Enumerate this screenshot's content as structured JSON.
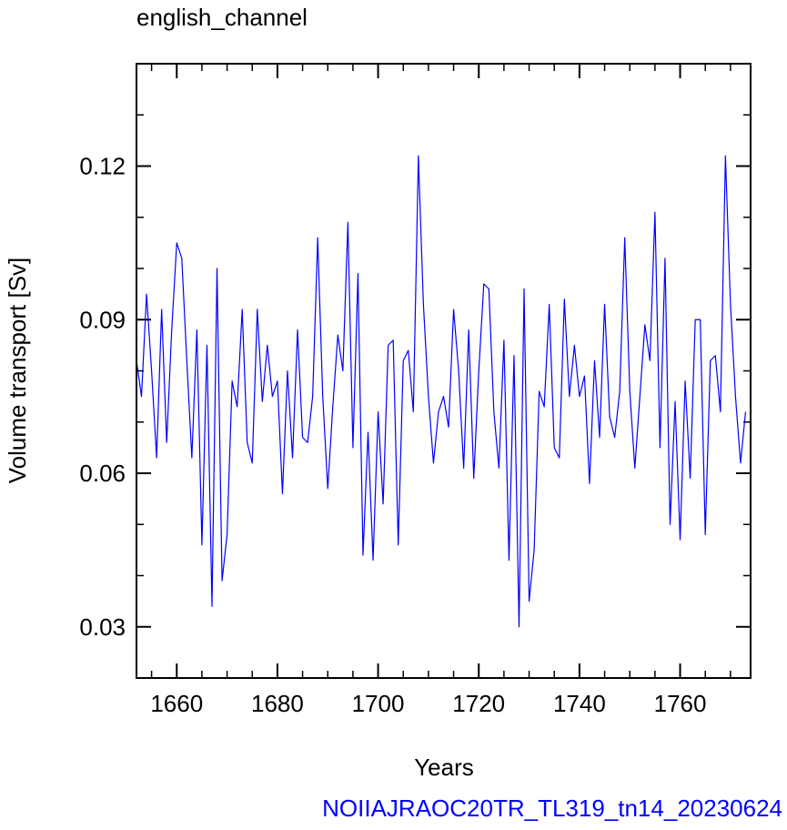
{
  "chart_data": {
    "type": "line",
    "title": "english_channel",
    "xlabel": "Years",
    "ylabel": "Volume transport [Sv]",
    "footer": "NOIIAJRAOC20TR_TL319_tn14_20230624",
    "xlim": [
      1652,
      1774
    ],
    "ylim": [
      0.02,
      0.14
    ],
    "x_ticks": [
      1660,
      1680,
      1700,
      1720,
      1740,
      1760
    ],
    "y_ticks": [
      0.03,
      0.06,
      0.09,
      0.12
    ],
    "y_tick_labels": [
      "0.03",
      "0.06",
      "0.09",
      "0.12"
    ],
    "grid": false,
    "line_color": "#0000ff",
    "footer_color": "#0000ff",
    "series": [
      {
        "x_start": 1652,
        "x_step": 1,
        "values": [
          0.082,
          0.075,
          0.095,
          0.08,
          0.063,
          0.092,
          0.066,
          0.088,
          0.105,
          0.102,
          0.082,
          0.063,
          0.088,
          0.046,
          0.085,
          0.034,
          0.1,
          0.039,
          0.048,
          0.078,
          0.073,
          0.092,
          0.066,
          0.062,
          0.092,
          0.074,
          0.085,
          0.075,
          0.078,
          0.056,
          0.08,
          0.063,
          0.088,
          0.067,
          0.066,
          0.075,
          0.106,
          0.075,
          0.057,
          0.073,
          0.087,
          0.08,
          0.109,
          0.065,
          0.099,
          0.044,
          0.068,
          0.043,
          0.072,
          0.054,
          0.085,
          0.086,
          0.046,
          0.082,
          0.084,
          0.072,
          0.122,
          0.093,
          0.075,
          0.062,
          0.072,
          0.075,
          0.069,
          0.092,
          0.08,
          0.061,
          0.088,
          0.059,
          0.08,
          0.097,
          0.096,
          0.072,
          0.061,
          0.086,
          0.043,
          0.083,
          0.03,
          0.096,
          0.035,
          0.045,
          0.076,
          0.073,
          0.093,
          0.065,
          0.063,
          0.094,
          0.075,
          0.085,
          0.075,
          0.079,
          0.058,
          0.082,
          0.067,
          0.093,
          0.071,
          0.067,
          0.076,
          0.106,
          0.076,
          0.061,
          0.075,
          0.089,
          0.082,
          0.111,
          0.065,
          0.102,
          0.05,
          0.074,
          0.047,
          0.078,
          0.059,
          0.09,
          0.09,
          0.048,
          0.082,
          0.083,
          0.072,
          0.122,
          0.093,
          0.075,
          0.062,
          0.072
        ]
      }
    ]
  }
}
